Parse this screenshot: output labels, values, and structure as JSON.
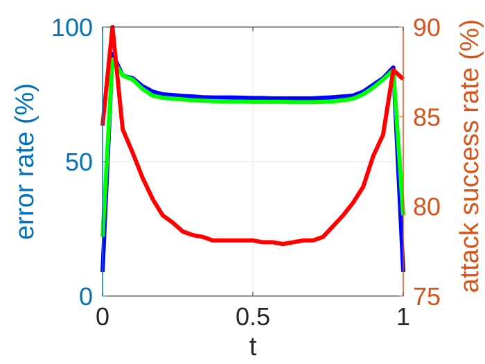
{
  "chart_data": {
    "type": "line",
    "title": "",
    "xlabel": "t",
    "ylabel_left": "error rate (%)",
    "ylabel_right": "attack success rate (%)",
    "xlim": [
      0,
      1
    ],
    "ylim_left": [
      0,
      100
    ],
    "ylim_right": [
      75,
      90
    ],
    "x_ticks": [
      0,
      0.5,
      1
    ],
    "x_tick_labels": [
      "0",
      "0.5",
      "1"
    ],
    "y_left_ticks": [
      0,
      50,
      100
    ],
    "y_left_tick_labels": [
      "0",
      "50",
      "100"
    ],
    "y_right_ticks": [
      75,
      80,
      85,
      90
    ],
    "y_right_tick_labels": [
      "75",
      "80",
      "85",
      "90"
    ],
    "grid": true,
    "colors": {
      "left_axis": "#0072BD",
      "right_axis": "#D95319",
      "axis_box": "#262626",
      "grid": "#dfe6ec"
    },
    "series": [
      {
        "color": "#0000FF",
        "axis": "left",
        "x": [
          0,
          0.033,
          0.067,
          0.1,
          0.133,
          0.167,
          0.2,
          0.233,
          0.267,
          0.3,
          0.333,
          0.367,
          0.4,
          0.433,
          0.467,
          0.5,
          0.533,
          0.567,
          0.6,
          0.633,
          0.667,
          0.7,
          0.733,
          0.767,
          0.8,
          0.833,
          0.867,
          0.9,
          0.933,
          0.967,
          1
        ],
        "values": [
          9,
          90,
          82,
          81,
          78,
          76,
          75,
          74.7,
          74.4,
          74.2,
          73.9,
          73.8,
          73.8,
          73.8,
          73.7,
          73.6,
          73.6,
          73.5,
          73.5,
          73.5,
          73.5,
          73.5,
          73.7,
          73.9,
          74.2,
          74.5,
          76,
          78.5,
          81,
          85,
          9
        ]
      },
      {
        "color": "#00FF00",
        "axis": "left",
        "x": [
          0,
          0.033,
          0.067,
          0.1,
          0.133,
          0.167,
          0.2,
          0.233,
          0.267,
          0.3,
          0.333,
          0.367,
          0.4,
          0.433,
          0.467,
          0.5,
          0.533,
          0.567,
          0.6,
          0.633,
          0.667,
          0.7,
          0.733,
          0.767,
          0.8,
          0.833,
          0.867,
          0.9,
          0.933,
          0.967,
          1
        ],
        "values": [
          22,
          88,
          82,
          80.5,
          77,
          74.5,
          73.7,
          73.4,
          73.1,
          72.8,
          72.6,
          72.5,
          72.4,
          72.3,
          72.3,
          72.2,
          72.2,
          72.2,
          72.2,
          72.1,
          72.1,
          72.1,
          72.2,
          72.4,
          72.8,
          73.4,
          75,
          77.5,
          80.5,
          84,
          30
        ]
      },
      {
        "color": "#FF0000",
        "axis": "right",
        "x": [
          0,
          0.033,
          0.067,
          0.1,
          0.133,
          0.167,
          0.2,
          0.233,
          0.267,
          0.3,
          0.333,
          0.367,
          0.4,
          0.433,
          0.467,
          0.5,
          0.533,
          0.567,
          0.6,
          0.633,
          0.667,
          0.7,
          0.733,
          0.767,
          0.8,
          0.833,
          0.867,
          0.9,
          0.933,
          0.967,
          1
        ],
        "values": [
          84.5,
          90,
          84.3,
          83,
          81.6,
          80.4,
          79.5,
          79.1,
          78.6,
          78.4,
          78.3,
          78.1,
          78.1,
          78.1,
          78.1,
          78.1,
          78,
          78,
          77.9,
          78,
          78.1,
          78.1,
          78.3,
          78.9,
          79.5,
          80.2,
          81.1,
          82.8,
          84,
          87.6,
          87.1
        ]
      }
    ]
  }
}
